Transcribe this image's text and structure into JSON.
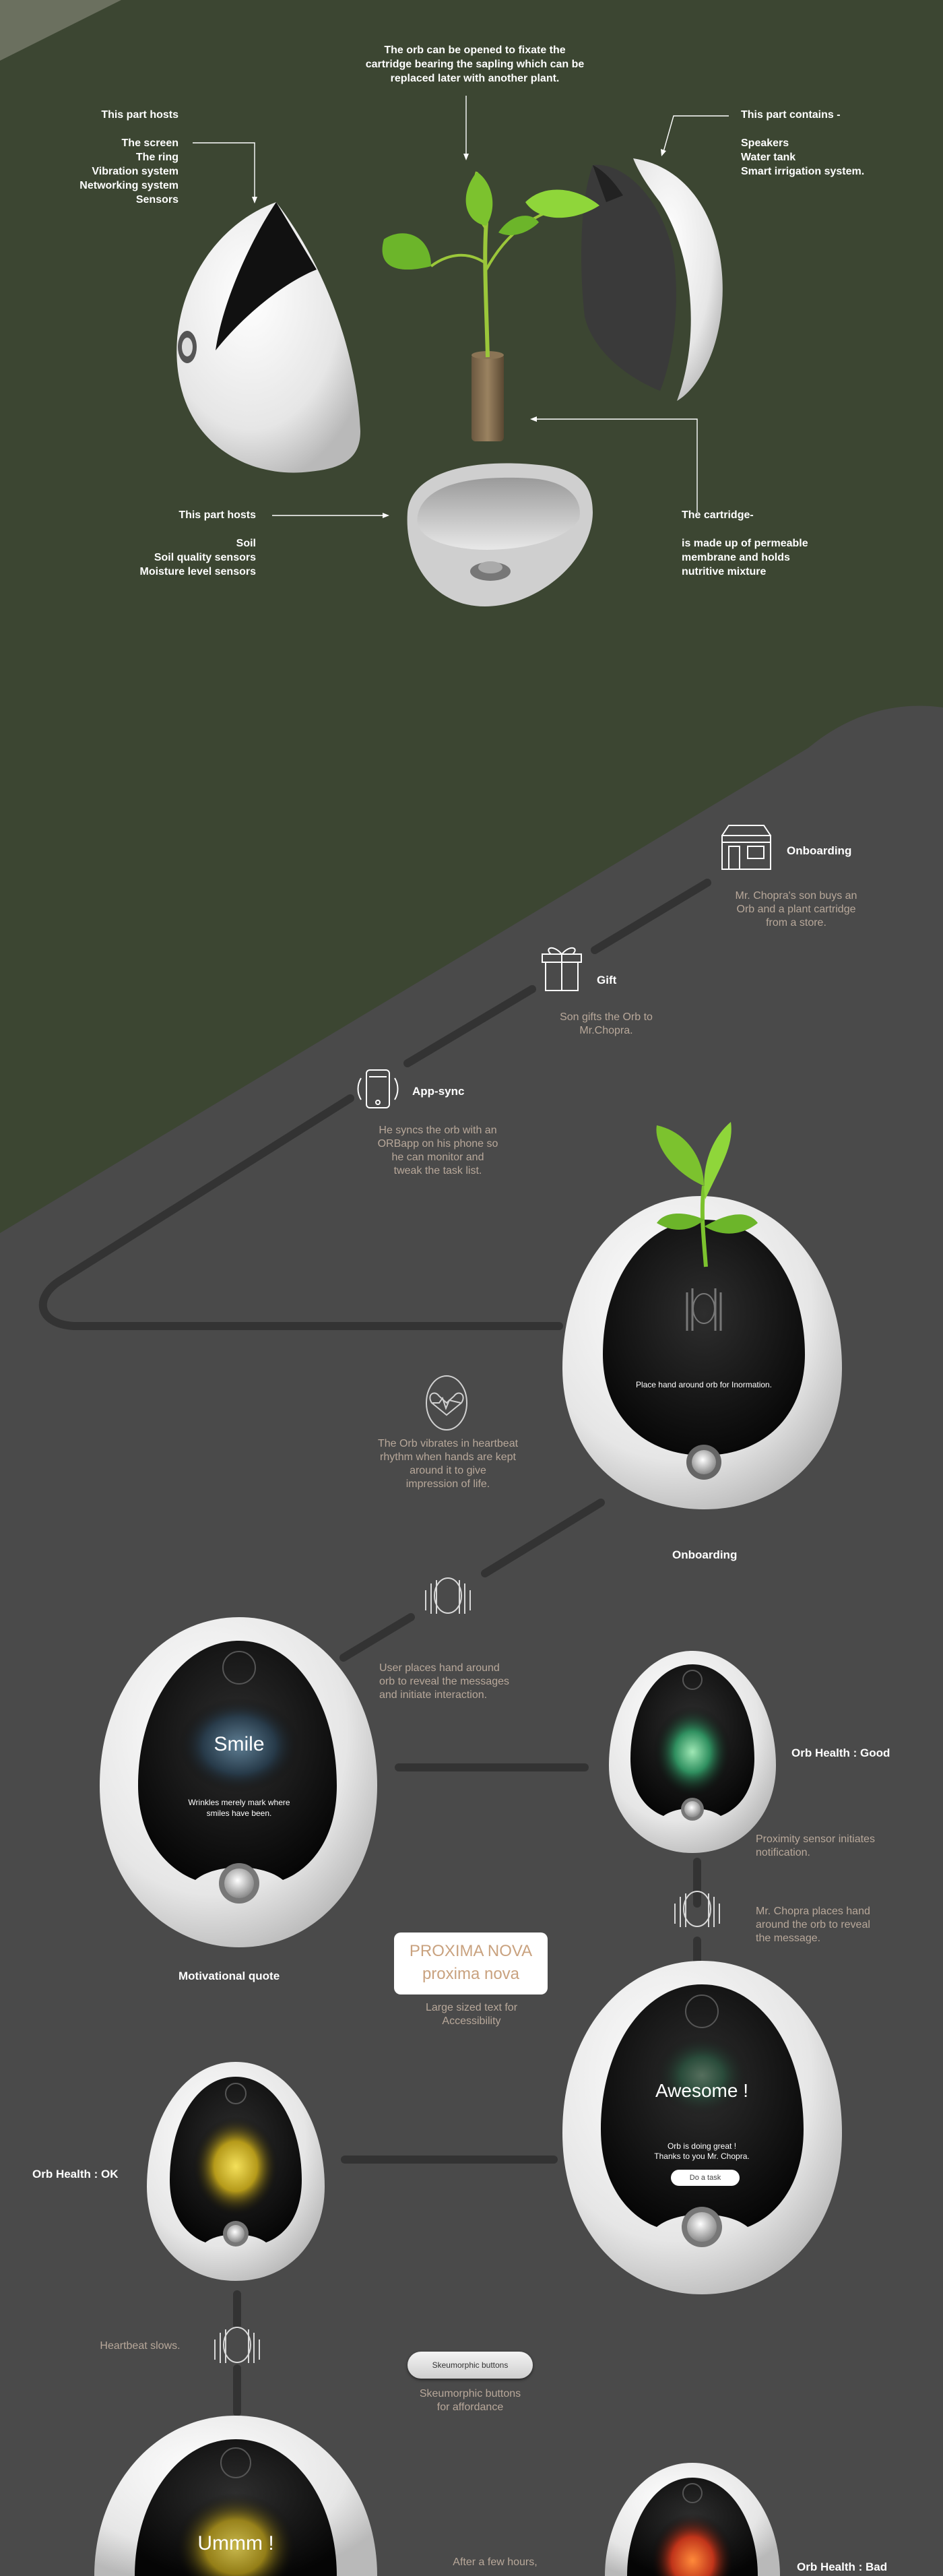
{
  "exploded": {
    "left_part": "This part hosts\n\nThe screen\nThe ring\nVibration system\nNetworking system\nSensors",
    "top_note": "The orb can be opened to fixate the\ncartridge bearing the sapling which can be\nreplaced later with another plant.",
    "right_part": "This part contains -\n\nSpeakers\nWater tank\nSmart irrigation system.",
    "bottom_part": "This part hosts\n\nSoil\nSoil quality sensors\nMoisture level sensors",
    "cartridge": "The cartridge-\n\nis made up of permeable\nmembrane and holds\nnutritive mixture"
  },
  "journey": {
    "onboarding_title": "Onboarding",
    "onboarding_desc": "Mr. Chopra's son buys an\nOrb and a plant cartridge\nfrom a store.",
    "gift_title": "Gift",
    "gift_desc": "Son gifts the Orb to\nMr.Chopra.",
    "appsync_title": "App-sync",
    "appsync_desc": "He syncs the orb with an\nORBapp on his phone so\nhe can monitor and\ntweak the task list.",
    "heartbeat_desc": "The Orb vibrates in heartbeat\nrhythm when hands are kept\naround it to give\nimpression of life.",
    "onboarding_screen_text": "Place hand around orb for Inormation.",
    "onboarding_caption": "Onboarding",
    "hands_desc": "User places hand around\norb to reveal the messages\nand initiate interaction.",
    "smile_title": "Smile",
    "smile_sub": "Wrinkles merely mark where\nsmiles have been.",
    "motivational_caption": "Motivational quote",
    "health_good": "Orb Health : Good",
    "proximity_desc": "Proximity sensor initiates\nnotification.",
    "chopra_desc": "Mr. Chopra places hand\naround the orb to reveal\nthe message.",
    "font_upper": "PROXIMA NOVA",
    "font_lower": "proxima nova",
    "font_desc": "Large sized text for\nAccessibility",
    "awesome_title": "Awesome !",
    "awesome_sub": "Orb is doing great !\nThanks to you Mr. Chopra.",
    "task_button": "Do a task",
    "health_ok": "Orb Health : OK",
    "heartbeat_slow": "Heartbeat slows.",
    "skeu_button": "Skeumorphic buttons",
    "skeu_desc": "Skeumorphic buttons\nfor affordance",
    "ummm_title": "Ummm !",
    "few_hours": "After a few hours,",
    "health_bad": "Orb Health : Bad"
  },
  "colors": {
    "top_bg": "#3c4632",
    "bottom_bg": "#4a4a4a",
    "desc_text": "#b8a89a",
    "line": "#333333",
    "leaf": "#7cc22e"
  }
}
